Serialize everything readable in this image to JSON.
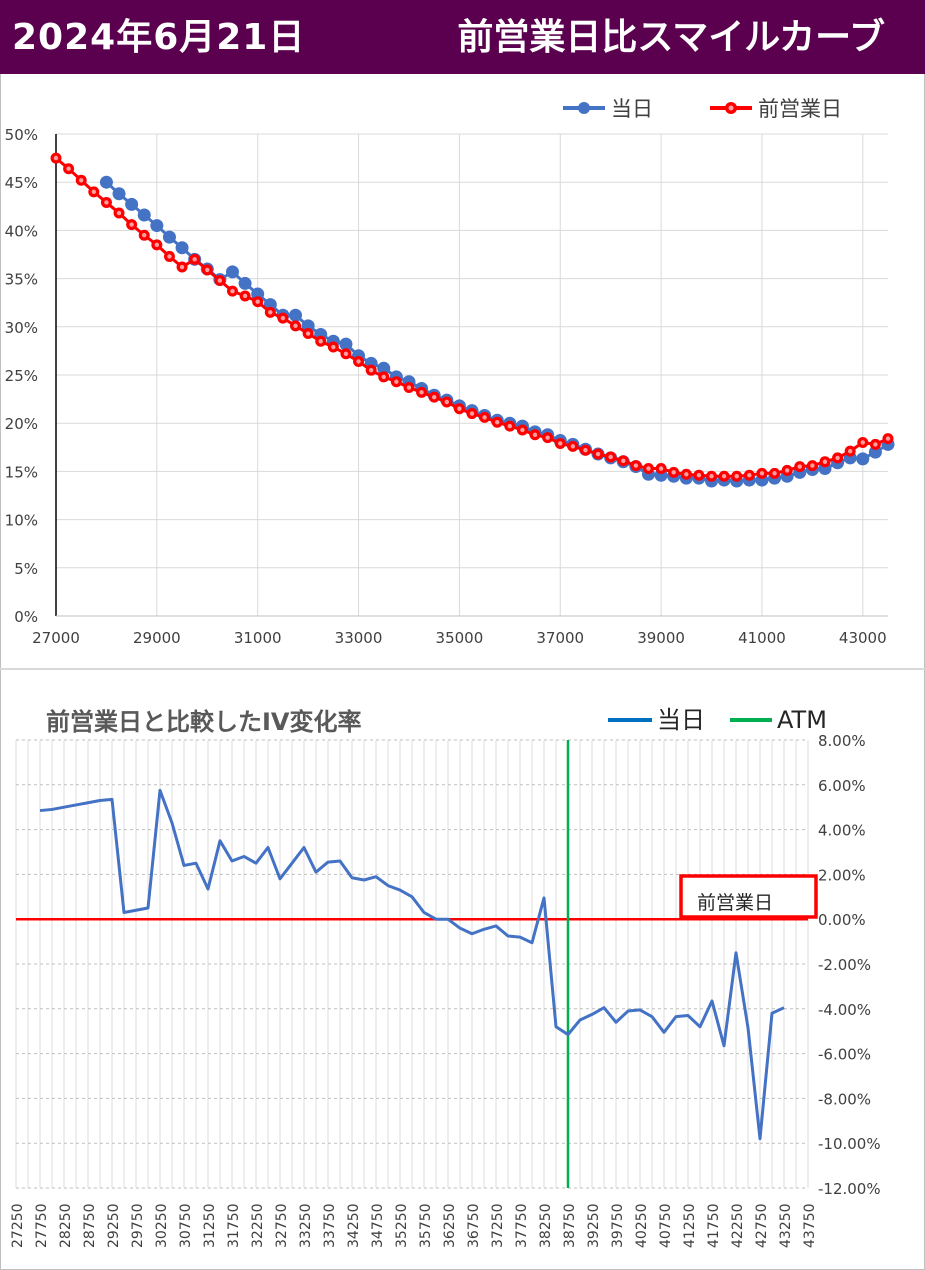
{
  "header": {
    "date": "2024年6月21日",
    "title": "前営業日比スマイルカーブ"
  },
  "colors": {
    "header_bg": "#5a004f",
    "series_today": "#4472c4",
    "series_prev": "#ff0000",
    "atm": "#00b050",
    "box": "#ff0000"
  },
  "chart_data": [
    {
      "type": "scatter",
      "title": "",
      "xlabel": "",
      "ylabel": "",
      "xlim": [
        27000,
        43500
      ],
      "ylim": [
        0,
        50
      ],
      "x_ticks": [
        "27000",
        "29000",
        "31000",
        "33000",
        "35000",
        "37000",
        "39000",
        "41000",
        "43000"
      ],
      "y_ticks": [
        "0%",
        "5%",
        "10%",
        "15%",
        "20%",
        "25%",
        "30%",
        "35%",
        "40%",
        "45%",
        "50%"
      ],
      "grid": true,
      "legend_position": "top-right",
      "legend": [
        "当日",
        "前営業日"
      ],
      "series": [
        {
          "name": "当日",
          "color": "#4472c4",
          "points": [
            [
              28000,
              45.0
            ],
            [
              28250,
              43.8
            ],
            [
              28500,
              42.7
            ],
            [
              28750,
              41.6
            ],
            [
              29000,
              40.5
            ],
            [
              29250,
              39.3
            ],
            [
              29500,
              38.2
            ],
            [
              29750,
              37.0
            ],
            [
              30000,
              36.0
            ],
            [
              30250,
              34.9
            ],
            [
              30500,
              35.7
            ],
            [
              30750,
              34.5
            ],
            [
              31000,
              33.4
            ],
            [
              31250,
              32.3
            ],
            [
              31500,
              31.2
            ],
            [
              31750,
              31.2
            ],
            [
              32000,
              30.1
            ],
            [
              32250,
              29.2
            ],
            [
              32500,
              28.5
            ],
            [
              32750,
              28.2
            ],
            [
              33000,
              27.0
            ],
            [
              33250,
              26.2
            ],
            [
              33500,
              25.7
            ],
            [
              33750,
              24.8
            ],
            [
              34000,
              24.3
            ],
            [
              34250,
              23.6
            ],
            [
              34500,
              22.9
            ],
            [
              34750,
              22.4
            ],
            [
              35000,
              21.8
            ],
            [
              35250,
              21.3
            ],
            [
              35500,
              20.8
            ],
            [
              35750,
              20.3
            ],
            [
              36000,
              20.0
            ],
            [
              36250,
              19.7
            ],
            [
              36500,
              19.1
            ],
            [
              36750,
              18.8
            ],
            [
              37000,
              18.2
            ],
            [
              37250,
              17.8
            ],
            [
              37500,
              17.3
            ],
            [
              37750,
              16.8
            ],
            [
              38000,
              16.4
            ],
            [
              38250,
              16.0
            ],
            [
              38500,
              15.5
            ],
            [
              38750,
              14.7
            ],
            [
              39000,
              14.6
            ],
            [
              39250,
              14.5
            ],
            [
              39500,
              14.3
            ],
            [
              39750,
              14.3
            ],
            [
              40000,
              14.0
            ],
            [
              40250,
              14.1
            ],
            [
              40500,
              14.0
            ],
            [
              40750,
              14.1
            ],
            [
              41000,
              14.1
            ],
            [
              41250,
              14.3
            ],
            [
              41500,
              14.5
            ],
            [
              41750,
              14.9
            ],
            [
              42000,
              15.2
            ],
            [
              42250,
              15.3
            ],
            [
              42500,
              15.9
            ],
            [
              42750,
              16.4
            ],
            [
              43000,
              16.3
            ],
            [
              43250,
              17.0
            ],
            [
              43500,
              17.8
            ]
          ]
        },
        {
          "name": "前営業日",
          "color": "#ff0000",
          "points": [
            [
              27000,
              47.5
            ],
            [
              27250,
              46.4
            ],
            [
              27500,
              45.2
            ],
            [
              27750,
              44.0
            ],
            [
              28000,
              42.9
            ],
            [
              28250,
              41.8
            ],
            [
              28500,
              40.6
            ],
            [
              28750,
              39.5
            ],
            [
              29000,
              38.5
            ],
            [
              29250,
              37.3
            ],
            [
              29500,
              36.2
            ],
            [
              29750,
              37.0
            ],
            [
              30000,
              35.9
            ],
            [
              30250,
              34.8
            ],
            [
              30500,
              33.7
            ],
            [
              30750,
              33.2
            ],
            [
              31000,
              32.6
            ],
            [
              31250,
              31.5
            ],
            [
              31500,
              30.9
            ],
            [
              31750,
              30.1
            ],
            [
              32000,
              29.3
            ],
            [
              32250,
              28.5
            ],
            [
              32500,
              27.9
            ],
            [
              32750,
              27.2
            ],
            [
              33000,
              26.4
            ],
            [
              33250,
              25.5
            ],
            [
              33500,
              24.8
            ],
            [
              33750,
              24.3
            ],
            [
              34000,
              23.7
            ],
            [
              34250,
              23.2
            ],
            [
              34500,
              22.7
            ],
            [
              34750,
              22.2
            ],
            [
              35000,
              21.5
            ],
            [
              35250,
              21.0
            ],
            [
              35500,
              20.6
            ],
            [
              35750,
              20.1
            ],
            [
              36000,
              19.7
            ],
            [
              36250,
              19.3
            ],
            [
              36500,
              18.8
            ],
            [
              36750,
              18.5
            ],
            [
              37000,
              17.9
            ],
            [
              37250,
              17.6
            ],
            [
              37500,
              17.2
            ],
            [
              37750,
              16.8
            ],
            [
              38000,
              16.5
            ],
            [
              38250,
              16.1
            ],
            [
              38500,
              15.6
            ],
            [
              38750,
              15.3
            ],
            [
              39000,
              15.3
            ],
            [
              39250,
              14.9
            ],
            [
              39500,
              14.7
            ],
            [
              39750,
              14.6
            ],
            [
              40000,
              14.5
            ],
            [
              40250,
              14.5
            ],
            [
              40500,
              14.5
            ],
            [
              40750,
              14.6
            ],
            [
              41000,
              14.8
            ],
            [
              41250,
              14.8
            ],
            [
              41500,
              15.1
            ],
            [
              41750,
              15.5
            ],
            [
              42000,
              15.6
            ],
            [
              42250,
              16.0
            ],
            [
              42500,
              16.4
            ],
            [
              42750,
              17.1
            ],
            [
              43000,
              18.0
            ],
            [
              43250,
              17.8
            ],
            [
              43500,
              18.4
            ]
          ]
        }
      ]
    },
    {
      "type": "line",
      "title": "前営業日と比較したIV変化率",
      "xlabel": "",
      "ylabel": "",
      "xlim": [
        27250,
        43750
      ],
      "ylim": [
        -12,
        8
      ],
      "x_step": 250,
      "x_label_step": 500,
      "y_ticks": [
        "8.00%",
        "6.00%",
        "4.00%",
        "2.00%",
        "0.00%",
        "-2.00%",
        "-4.00%",
        "-6.00%",
        "-8.00%",
        "-10.00%",
        "-12.00%"
      ],
      "y_axis_side": "right",
      "grid": true,
      "legend_position": "top-right",
      "legend": [
        "当日",
        "ATM"
      ],
      "atm_strike": 38750,
      "annotation": "前営業日",
      "series": [
        {
          "name": "当日",
          "color": "#4472c4",
          "points": [
            [
              27750,
              4.85
            ],
            [
              28000,
              4.9
            ],
            [
              28250,
              5.0
            ],
            [
              28500,
              5.1
            ],
            [
              28750,
              5.2
            ],
            [
              29000,
              5.3
            ],
            [
              29250,
              5.35
            ],
            [
              29500,
              0.3
            ],
            [
              29750,
              0.4
            ],
            [
              30000,
              0.5
            ],
            [
              30250,
              5.75
            ],
            [
              30500,
              4.3
            ],
            [
              30750,
              2.4
            ],
            [
              31000,
              2.5
            ],
            [
              31250,
              1.35
            ],
            [
              31500,
              3.5
            ],
            [
              31750,
              2.6
            ],
            [
              32000,
              2.8
            ],
            [
              32250,
              2.5
            ],
            [
              32500,
              3.2
            ],
            [
              32750,
              1.8
            ],
            [
              33000,
              2.5
            ],
            [
              33250,
              3.2
            ],
            [
              33500,
              2.1
            ],
            [
              33750,
              2.55
            ],
            [
              34000,
              2.6
            ],
            [
              34250,
              1.85
            ],
            [
              34500,
              1.75
            ],
            [
              34750,
              1.9
            ],
            [
              35000,
              1.5
            ],
            [
              35250,
              1.3
            ],
            [
              35500,
              1.0
            ],
            [
              35750,
              0.3
            ],
            [
              36000,
              0.0
            ],
            [
              36250,
              0.0
            ],
            [
              36500,
              -0.4
            ],
            [
              36750,
              -0.65
            ],
            [
              37000,
              -0.45
            ],
            [
              37250,
              -0.3
            ],
            [
              37500,
              -0.75
            ],
            [
              37750,
              -0.8
            ],
            [
              38000,
              -1.05
            ],
            [
              38250,
              0.95
            ],
            [
              38500,
              -4.8
            ],
            [
              38750,
              -5.15
            ],
            [
              39000,
              -4.5
            ],
            [
              39250,
              -4.25
            ],
            [
              39500,
              -3.95
            ],
            [
              39750,
              -4.6
            ],
            [
              40000,
              -4.1
            ],
            [
              40250,
              -4.05
            ],
            [
              40500,
              -4.35
            ],
            [
              40750,
              -5.05
            ],
            [
              41000,
              -4.35
            ],
            [
              41250,
              -4.3
            ],
            [
              41500,
              -4.8
            ],
            [
              41750,
              -3.65
            ],
            [
              42000,
              -5.65
            ],
            [
              42250,
              -1.5
            ],
            [
              42500,
              -4.85
            ],
            [
              42750,
              -9.8
            ],
            [
              43000,
              -4.2
            ],
            [
              43250,
              -3.95
            ]
          ]
        },
        {
          "name": "前営業日",
          "color": "#ff0000",
          "points": [
            [
              27250,
              0.0
            ],
            [
              43750,
              0.0
            ]
          ]
        }
      ]
    }
  ]
}
